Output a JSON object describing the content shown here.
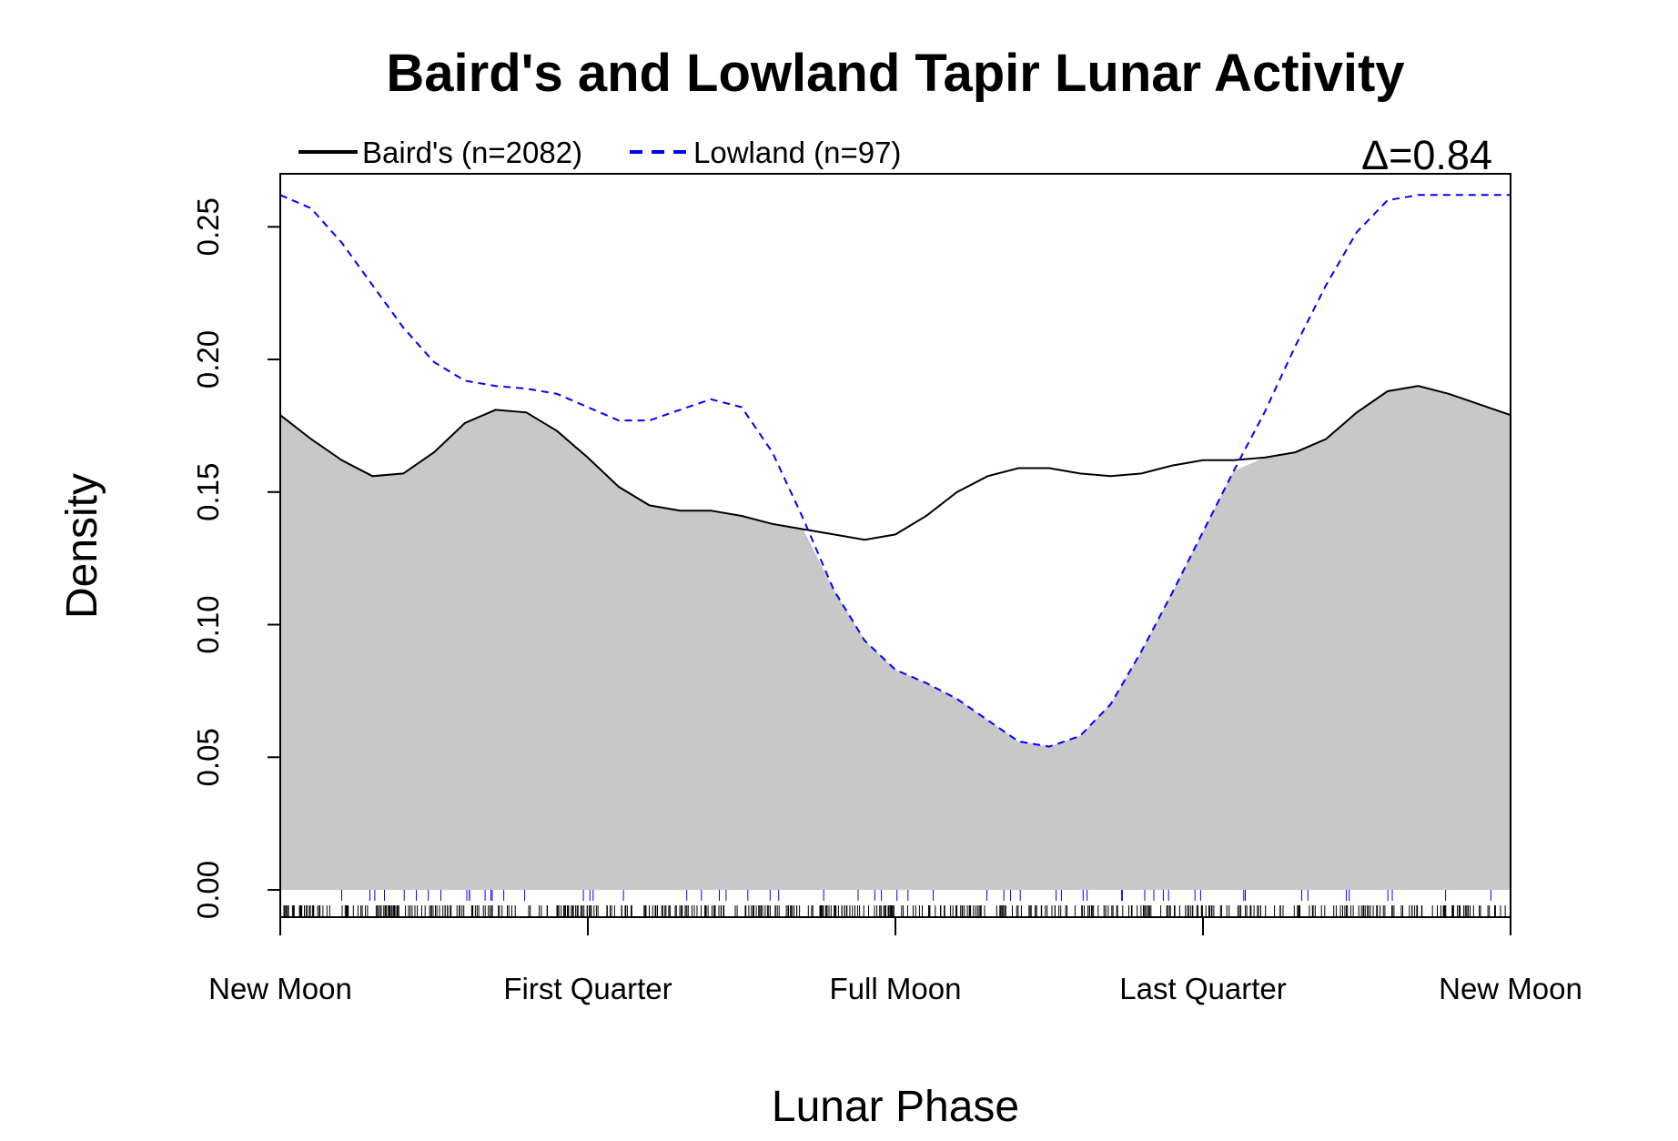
{
  "chart_data": {
    "type": "line",
    "title": "Baird's and Lowland Tapir Lunar Activity",
    "xlabel": "Lunar Phase",
    "ylabel": "Density",
    "xlim": [
      0,
      6.2832
    ],
    "ylim": [
      0,
      0.27
    ],
    "x_ticks": [
      0,
      1.5708,
      3.1416,
      4.7124,
      6.2832
    ],
    "x_tick_labels": [
      "New Moon",
      "First Quarter",
      "Full Moon",
      "Last Quarter",
      "New Moon"
    ],
    "y_ticks": [
      0.0,
      0.05,
      0.1,
      0.15,
      0.2,
      0.25
    ],
    "y_tick_labels": [
      "0.00",
      "0.05",
      "0.10",
      "0.15",
      "0.20",
      "0.25"
    ],
    "x": [
      0,
      0.1571,
      0.3142,
      0.4712,
      0.6283,
      0.7854,
      0.9425,
      1.0996,
      1.2566,
      1.4137,
      1.5708,
      1.7279,
      1.885,
      2.042,
      2.1991,
      2.3562,
      2.5133,
      2.6704,
      2.8274,
      2.9845,
      3.1416,
      3.2987,
      3.4558,
      3.6128,
      3.7699,
      3.927,
      4.0841,
      4.2412,
      4.3982,
      4.5553,
      4.7124,
      4.8695,
      5.0265,
      5.1836,
      5.3407,
      5.4978,
      5.6549,
      5.812,
      5.969,
      6.1261,
      6.2832
    ],
    "series": [
      {
        "name": "Baird's (n=2082)",
        "color": "#000000",
        "style": "solid",
        "values": [
          0.179,
          0.17,
          0.162,
          0.156,
          0.157,
          0.165,
          0.176,
          0.181,
          0.18,
          0.173,
          0.163,
          0.152,
          0.145,
          0.143,
          0.143,
          0.141,
          0.138,
          0.136,
          0.134,
          0.132,
          0.134,
          0.141,
          0.15,
          0.156,
          0.159,
          0.159,
          0.157,
          0.156,
          0.157,
          0.16,
          0.162,
          0.162,
          0.163,
          0.165,
          0.17,
          0.18,
          0.188,
          0.19,
          0.187,
          0.183,
          0.179
        ]
      },
      {
        "name": "Lowland (n=97)",
        "color": "#0000ff",
        "style": "dashed",
        "values": [
          0.262,
          0.257,
          0.244,
          0.228,
          0.212,
          0.199,
          0.192,
          0.19,
          0.189,
          0.187,
          0.182,
          0.177,
          0.177,
          0.181,
          0.185,
          0.182,
          0.165,
          0.14,
          0.113,
          0.094,
          0.083,
          0.078,
          0.072,
          0.064,
          0.056,
          0.054,
          0.058,
          0.07,
          0.09,
          0.112,
          0.135,
          0.158,
          0.18,
          0.205,
          0.228,
          0.248,
          0.26,
          0.262,
          0.262,
          0.262,
          0.262
        ]
      }
    ],
    "overlap_fill": "#c8c8c8",
    "legend_position": "top-left",
    "annotation": "=0.84",
    "annotation_symbol": "Δ",
    "grid": false,
    "rug": true
  }
}
